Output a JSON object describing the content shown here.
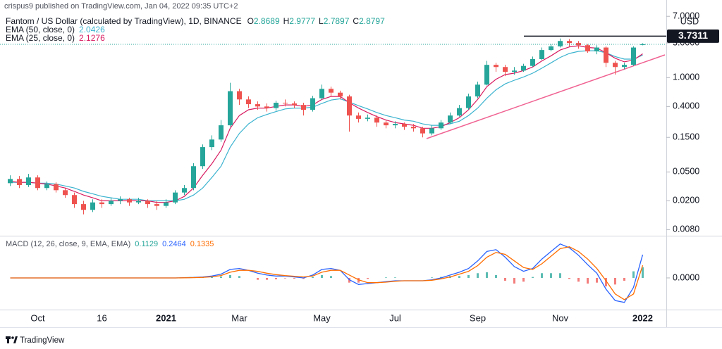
{
  "header": "crispus9 published on TradingView.com, Jan 04, 2022 09:35 UTC+2",
  "footer": "TradingView",
  "chart_data": [
    {
      "type": "candlestick",
      "title": "Fantom / US Dollar (calculated by TradingView), 1D, BINANCE",
      "ohlc_labels": [
        "O",
        "H",
        "L",
        "C"
      ],
      "y_unit_label": "USD",
      "log_scale": true,
      "grid": false,
      "up_color": "#26a69a",
      "down_color": "#ef5350",
      "categories": [
        null,
        null,
        null,
        "Oct",
        null,
        null,
        null,
        null,
        null,
        null,
        "16",
        null,
        null,
        null,
        null,
        null,
        null,
        "2021",
        null,
        null,
        null,
        null,
        null,
        null,
        null,
        "Mar",
        null,
        null,
        null,
        null,
        null,
        null,
        null,
        null,
        "May",
        null,
        null,
        null,
        null,
        null,
        null,
        null,
        "Jul",
        null,
        null,
        null,
        null,
        null,
        null,
        null,
        null,
        "Sep",
        null,
        null,
        null,
        null,
        null,
        null,
        null,
        null,
        "Nov",
        null,
        null,
        null,
        null,
        null,
        null,
        null,
        null,
        "2022"
      ],
      "open": [
        0.035,
        0.04,
        0.033,
        0.042,
        0.03,
        0.034,
        0.028,
        0.024,
        0.018,
        0.015,
        0.019,
        0.018,
        0.02,
        0.021,
        0.019,
        0.02,
        0.018,
        0.017,
        0.019,
        0.026,
        0.03,
        0.06,
        0.11,
        0.14,
        0.22,
        0.65,
        0.5,
        0.43,
        0.4,
        0.38,
        0.45,
        0.44,
        0.42,
        0.36,
        0.52,
        0.7,
        0.62,
        0.55,
        0.3,
        0.27,
        0.28,
        0.24,
        0.22,
        0.23,
        0.21,
        0.2,
        0.17,
        0.2,
        0.24,
        0.3,
        0.38,
        0.55,
        0.8,
        1.5,
        1.4,
        1.2,
        1.25,
        1.45,
        1.8,
        2.4,
        2.7,
        3.2,
        3.0,
        2.8,
        2.3,
        2.6,
        1.6,
        1.4,
        1.5,
        2.8689
      ],
      "high": [
        0.045,
        0.044,
        0.047,
        0.045,
        0.037,
        0.036,
        0.03,
        0.026,
        0.02,
        0.021,
        0.021,
        0.022,
        0.023,
        0.022,
        0.022,
        0.021,
        0.02,
        0.021,
        0.028,
        0.033,
        0.066,
        0.12,
        0.16,
        0.26,
        0.85,
        0.7,
        0.55,
        0.47,
        0.44,
        0.48,
        0.5,
        0.47,
        0.45,
        0.56,
        0.8,
        0.75,
        0.66,
        0.58,
        0.33,
        0.31,
        0.3,
        0.26,
        0.25,
        0.24,
        0.23,
        0.21,
        0.22,
        0.26,
        0.33,
        0.42,
        0.6,
        0.88,
        1.7,
        1.6,
        1.5,
        1.4,
        1.55,
        1.95,
        2.6,
        2.9,
        3.46,
        3.4,
        3.2,
        2.9,
        2.8,
        2.7,
        1.7,
        1.6,
        2.7,
        2.9777
      ],
      "low": [
        0.032,
        0.03,
        0.031,
        0.028,
        0.028,
        0.026,
        0.022,
        0.016,
        0.013,
        0.014,
        0.016,
        0.017,
        0.018,
        0.017,
        0.018,
        0.016,
        0.015,
        0.016,
        0.018,
        0.024,
        0.028,
        0.055,
        0.1,
        0.13,
        0.21,
        0.42,
        0.38,
        0.36,
        0.34,
        0.35,
        0.4,
        0.38,
        0.3,
        0.34,
        0.5,
        0.55,
        0.5,
        0.18,
        0.24,
        0.25,
        0.21,
        0.2,
        0.2,
        0.19,
        0.18,
        0.15,
        0.16,
        0.19,
        0.23,
        0.29,
        0.36,
        0.52,
        0.78,
        1.2,
        1.05,
        1.1,
        1.2,
        1.4,
        1.75,
        2.3,
        2.6,
        2.7,
        2.5,
        2.2,
        2.1,
        1.4,
        1.1,
        1.3,
        1.45,
        2.7897
      ],
      "close": [
        0.04,
        0.033,
        0.042,
        0.03,
        0.034,
        0.028,
        0.024,
        0.018,
        0.015,
        0.019,
        0.018,
        0.02,
        0.021,
        0.019,
        0.02,
        0.018,
        0.017,
        0.019,
        0.026,
        0.03,
        0.06,
        0.11,
        0.14,
        0.22,
        0.65,
        0.5,
        0.43,
        0.4,
        0.38,
        0.45,
        0.44,
        0.42,
        0.36,
        0.52,
        0.7,
        0.62,
        0.55,
        0.3,
        0.27,
        0.28,
        0.24,
        0.22,
        0.23,
        0.21,
        0.2,
        0.17,
        0.2,
        0.24,
        0.3,
        0.38,
        0.55,
        0.8,
        1.5,
        1.4,
        1.2,
        1.25,
        1.45,
        1.8,
        2.4,
        2.7,
        3.2,
        3.0,
        2.8,
        2.3,
        2.6,
        1.6,
        1.4,
        1.5,
        2.6,
        2.8797
      ],
      "series": [
        {
          "name": "EMA (50, close, 0)",
          "color": "#3bb3cf",
          "values": [
            0.036,
            0.036,
            0.036,
            0.035,
            0.035,
            0.034,
            0.032,
            0.03,
            0.027,
            0.025,
            0.023,
            0.022,
            0.021,
            0.021,
            0.021,
            0.02,
            0.02,
            0.02,
            0.02,
            0.021,
            0.024,
            0.03,
            0.042,
            0.06,
            0.11,
            0.17,
            0.23,
            0.28,
            0.31,
            0.34,
            0.37,
            0.38,
            0.38,
            0.39,
            0.44,
            0.49,
            0.51,
            0.46,
            0.41,
            0.37,
            0.33,
            0.3,
            0.28,
            0.26,
            0.25,
            0.23,
            0.22,
            0.22,
            0.23,
            0.25,
            0.3,
            0.38,
            0.52,
            0.68,
            0.82,
            0.92,
            1.02,
            1.15,
            1.35,
            1.6,
            1.9,
            2.15,
            2.3,
            2.35,
            2.35,
            2.2,
            1.95,
            1.8,
            1.8,
            2.0426
          ]
        },
        {
          "name": "EMA (25, close, 0)",
          "color": "#d81b60",
          "values": [
            0.037,
            0.036,
            0.036,
            0.035,
            0.034,
            0.032,
            0.03,
            0.027,
            0.024,
            0.022,
            0.02,
            0.02,
            0.02,
            0.02,
            0.02,
            0.02,
            0.019,
            0.019,
            0.02,
            0.023,
            0.03,
            0.045,
            0.065,
            0.1,
            0.2,
            0.3,
            0.36,
            0.38,
            0.38,
            0.4,
            0.42,
            0.42,
            0.4,
            0.42,
            0.5,
            0.55,
            0.55,
            0.45,
            0.38,
            0.33,
            0.29,
            0.26,
            0.24,
            0.23,
            0.22,
            0.2,
            0.2,
            0.21,
            0.24,
            0.28,
            0.36,
            0.5,
            0.75,
            0.95,
            1.1,
            1.15,
            1.25,
            1.4,
            1.7,
            2.0,
            2.4,
            2.65,
            2.75,
            2.6,
            2.55,
            2.2,
            1.85,
            1.65,
            1.75,
            2.1276
          ]
        }
      ],
      "annotations": [
        {
          "value": 3.7311
        }
      ],
      "ylim": [
        0.0066,
        8.6
      ],
      "yticks": [
        {
          "value": 7,
          "label": "7.0000"
        },
        {
          "value": 3,
          "label": "3.0000"
        },
        {
          "value": 1,
          "label": "1.0000"
        },
        {
          "value": 0.4,
          "label": "0.4000"
        },
        {
          "value": 0.15,
          "label": "0.1500"
        },
        {
          "value": 0.05,
          "label": "0.0500"
        },
        {
          "value": 0.02,
          "label": "0.0200"
        },
        {
          "value": 0.008,
          "label": "0.0080"
        }
      ]
    },
    {
      "type": "line",
      "title": "MACD (12, 26, close, 9, EMA, EMA)",
      "grid": false,
      "histogram": {
        "up_color": "#26a69a",
        "down_color": "#ef5350",
        "values": [
          0,
          0,
          0,
          0,
          0,
          0,
          0,
          0,
          0,
          0,
          0,
          0,
          0,
          0,
          0,
          0,
          0,
          0,
          0,
          0.001,
          0.002,
          0.004,
          0.008,
          0.015,
          0.03,
          0.02,
          0,
          -0.02,
          -0.02,
          -0.015,
          -0.005,
          -0.008,
          -0.01,
          0.01,
          0.03,
          0.02,
          0,
          -0.05,
          -0.05,
          -0.01,
          0,
          0.005,
          0.005,
          0,
          0,
          0,
          0.005,
          0.01,
          0.02,
          0.02,
          0.03,
          0.05,
          0.06,
          0.03,
          -0.03,
          -0.06,
          -0.04,
          0.01,
          0.05,
          0.05,
          0.05,
          -0.01,
          -0.04,
          -0.06,
          -0.05,
          -0.09,
          -0.07,
          -0.03,
          0.07,
          0.1129
        ]
      },
      "series": [
        {
          "color": "#2962ff",
          "values": [
            0,
            0,
            0,
            0,
            0,
            0,
            0,
            0,
            0,
            0,
            0,
            0,
            0,
            0,
            0,
            0,
            0,
            0,
            0,
            0.002,
            0.005,
            0.01,
            0.02,
            0.04,
            0.09,
            0.1,
            0.08,
            0.05,
            0.03,
            0.02,
            0.02,
            0.01,
            0,
            0.03,
            0.09,
            0.1,
            0.08,
            -0.02,
            -0.07,
            -0.06,
            -0.05,
            -0.04,
            -0.03,
            -0.03,
            -0.03,
            -0.03,
            -0.02,
            0,
            0.03,
            0.06,
            0.1,
            0.18,
            0.28,
            0.3,
            0.22,
            0.12,
            0.07,
            0.1,
            0.2,
            0.28,
            0.36,
            0.32,
            0.24,
            0.14,
            0.05,
            -0.12,
            -0.24,
            -0.26,
            -0.1,
            0.2464
          ]
        },
        {
          "color": "#ff6d00",
          "values": [
            0,
            0,
            0,
            0,
            0,
            0,
            0,
            0,
            0,
            0,
            0,
            0,
            0,
            0,
            0,
            0,
            0,
            0,
            0,
            0.001,
            0.003,
            0.006,
            0.012,
            0.025,
            0.06,
            0.08,
            0.08,
            0.07,
            0.05,
            0.035,
            0.025,
            0.018,
            0.01,
            0.02,
            0.06,
            0.08,
            0.08,
            0.03,
            -0.02,
            -0.05,
            -0.05,
            -0.045,
            -0.035,
            -0.03,
            -0.03,
            -0.03,
            -0.025,
            -0.01,
            0.01,
            0.04,
            0.07,
            0.13,
            0.22,
            0.27,
            0.25,
            0.18,
            0.11,
            0.09,
            0.15,
            0.23,
            0.31,
            0.33,
            0.28,
            0.2,
            0.1,
            -0.03,
            -0.17,
            -0.23,
            -0.17,
            0.1335
          ]
        }
      ],
      "ylim": [
        -0.336,
        0.425
      ],
      "yticks": [
        {
          "value": 0,
          "label": "0.0000"
        }
      ]
    }
  ]
}
